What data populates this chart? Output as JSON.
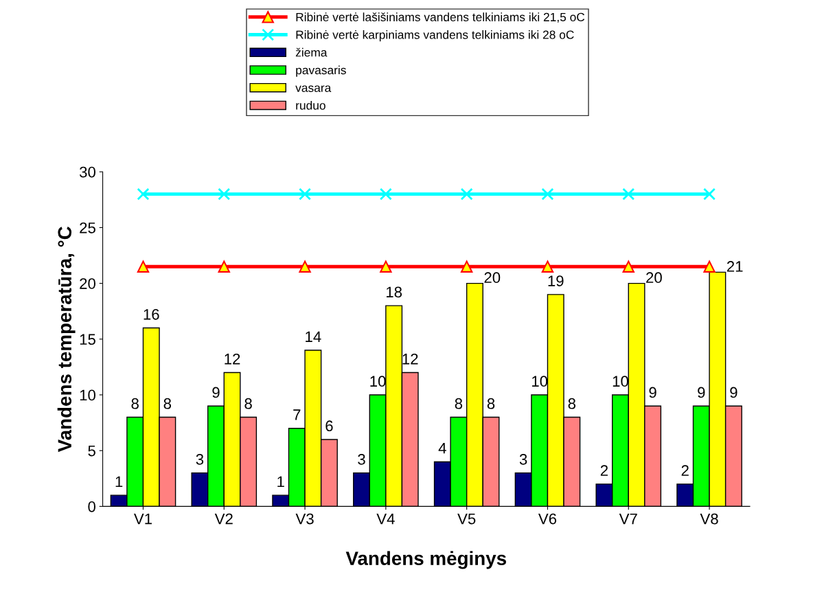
{
  "chart_data": {
    "type": "bar",
    "xlabel": "Vandens mėginys",
    "ylabel": "Vandens temperatūra, °C",
    "categories": [
      "V1",
      "V2",
      "V3",
      "V4",
      "V5",
      "V6",
      "V7",
      "V8"
    ],
    "ylim": [
      0,
      30
    ],
    "yticks": [
      0,
      5,
      10,
      15,
      20,
      25,
      30
    ],
    "grid": false,
    "legend": "top",
    "series": [
      {
        "name": "žiema",
        "color": "#000080",
        "values": [
          1,
          3,
          1,
          3,
          4,
          3,
          2,
          2
        ],
        "value_labels": [
          "1",
          "3",
          "1",
          "3",
          "4",
          "3",
          "2",
          "2"
        ]
      },
      {
        "name": "pavasaris",
        "color": "#00ff00",
        "values": [
          8,
          9,
          7,
          10,
          8,
          10,
          10,
          9
        ],
        "value_labels": [
          "8",
          "9",
          "7",
          "10",
          "8",
          "10",
          "10",
          "9"
        ]
      },
      {
        "name": "vasara",
        "color": "#ffff00",
        "values": [
          16,
          12,
          14,
          18,
          20,
          19,
          20,
          21
        ],
        "value_labels": [
          "16",
          "12",
          "14",
          "18",
          "20",
          "19",
          "20",
          "21"
        ]
      },
      {
        "name": "ruduo",
        "color": "#ff8080",
        "values": [
          8,
          8,
          6,
          12,
          8,
          8,
          9,
          9
        ],
        "value_labels": [
          "8",
          "8",
          "6",
          "12",
          "8",
          "8",
          "9",
          "9"
        ]
      },
      {
        "name": "Ribinė vertė lašišiniams vandens telkiniams iki 21,5 oC",
        "type": "line",
        "color": "#ff0000",
        "marker": "triangle",
        "values": [
          21.5,
          21.5,
          21.5,
          21.5,
          21.5,
          21.5,
          21.5,
          21.5
        ]
      },
      {
        "name": "Ribinė vertė karpiniams vandens telkiniams iki 28 oC",
        "type": "line",
        "color": "#00ffff",
        "marker": "cross",
        "values": [
          28,
          28,
          28,
          28,
          28,
          28,
          28,
          28
        ]
      }
    ]
  }
}
